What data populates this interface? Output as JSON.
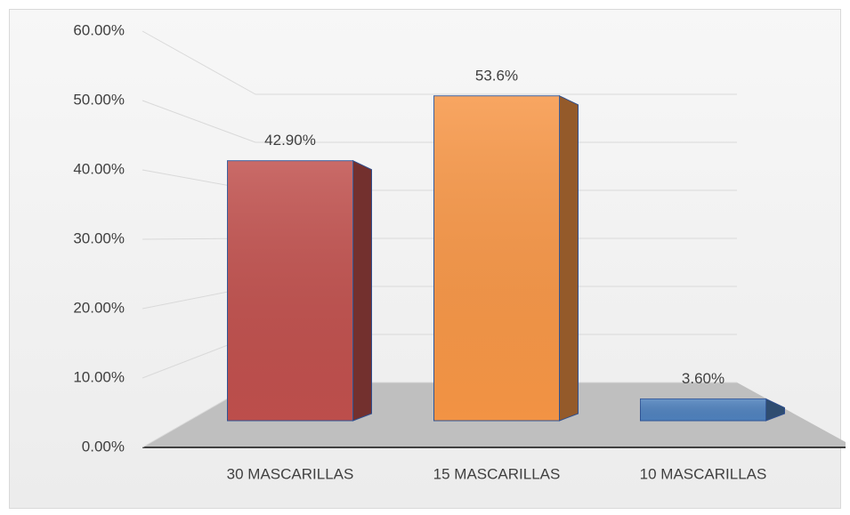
{
  "chart_data": {
    "type": "bar3d",
    "categories": [
      "30 MASCARILLAS",
      "15 MASCARILLAS",
      "10 MASCARILLAS"
    ],
    "values": [
      42.9,
      53.6,
      3.6
    ],
    "value_labels": [
      "42.90%",
      "53.6%",
      "3.60%"
    ],
    "colors": [
      "#c0504d",
      "#f79646",
      "#4f81bd"
    ],
    "ylim": [
      0,
      60
    ],
    "yticks": [
      {
        "value": 0,
        "label": "0.00%"
      },
      {
        "value": 10,
        "label": "10.00%"
      },
      {
        "value": 20,
        "label": "20.00%"
      },
      {
        "value": 30,
        "label": "30.00%"
      },
      {
        "value": 40,
        "label": "40.00%"
      },
      {
        "value": 50,
        "label": "50.00%"
      },
      {
        "value": 60,
        "label": "60.00%"
      }
    ],
    "grid": true
  }
}
